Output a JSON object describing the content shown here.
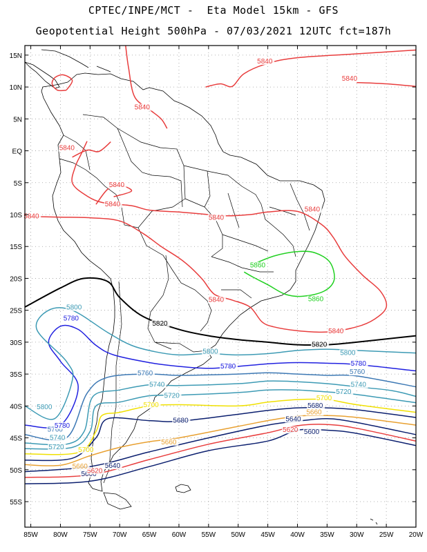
{
  "header": {
    "line1": "CPTEC/INPE/MCT -  Eta Model 15km - GFS",
    "line2": "Geopotential Height 500hPa - 07/03/2021 12UTC fct=187h"
  },
  "axes": {
    "lat_labels": [
      "15N",
      "10N",
      "5N",
      "EQ",
      "5S",
      "10S",
      "15S",
      "20S",
      "25S",
      "30S",
      "35S",
      "40S",
      "45S",
      "50S",
      "55S"
    ],
    "lat_values": [
      15,
      10,
      5,
      0,
      -5,
      -10,
      -15,
      -20,
      -25,
      -30,
      -35,
      -40,
      -45,
      -50,
      -55
    ],
    "lon_labels": [
      "85W",
      "80W",
      "75W",
      "70W",
      "65W",
      "60W",
      "55W",
      "50W",
      "45W",
      "40W",
      "35W",
      "30W",
      "25W",
      "20W"
    ],
    "lon_values": [
      -85,
      -80,
      -75,
      -70,
      -65,
      -60,
      -55,
      -50,
      -45,
      -40,
      -35,
      -30,
      -25,
      -20
    ],
    "lon_range": [
      -86,
      -20
    ],
    "lat_range": [
      -59,
      16.5
    ],
    "grid": "dotted"
  },
  "contours": [
    {
      "level": "5600",
      "color": "#0a1e6e",
      "points": [
        [
          -86,
          -52.2
        ],
        [
          -75,
          -51.8
        ],
        [
          -65,
          -49.5
        ],
        [
          -55,
          -47
        ],
        [
          -45,
          -45.5
        ],
        [
          -40,
          -43.8
        ],
        [
          -35,
          -43.8
        ],
        [
          -30,
          -44.3
        ],
        [
          -20,
          -46.2
        ]
      ],
      "labels": [
        [
          -38.9,
          -44.4
        ],
        [
          -76.5,
          -51
        ]
      ]
    },
    {
      "level": "5620",
      "color": "#e83c3c",
      "points": [
        [
          -86,
          -51.2
        ],
        [
          -75,
          -50.8
        ],
        [
          -65,
          -48.4
        ],
        [
          -55,
          -46
        ],
        [
          -45,
          -44.2
        ],
        [
          -40,
          -43.1
        ],
        [
          -35,
          -42.9
        ],
        [
          -30,
          -43.5
        ],
        [
          -20,
          -45.5
        ]
      ],
      "labels": [
        [
          -42.5,
          -44.1
        ],
        [
          -75.5,
          -50.5
        ]
      ]
    },
    {
      "level": "5640",
      "color": "#0a1e6e",
      "points": [
        [
          -86,
          -50.3
        ],
        [
          -75,
          -49.5
        ],
        [
          -65,
          -47.2
        ],
        [
          -55,
          -45
        ],
        [
          -45,
          -43
        ],
        [
          -40,
          -42.4
        ],
        [
          -35,
          -42
        ],
        [
          -30,
          -42.6
        ],
        [
          -20,
          -44.5
        ]
      ],
      "labels": [
        [
          -42,
          -42.4
        ],
        [
          -72.5,
          -49.7
        ]
      ]
    },
    {
      "level": "5660",
      "color": "#e8a030",
      "points": [
        [
          -86,
          -49.2
        ],
        [
          -80,
          -49.3
        ],
        [
          -75,
          -47.8
        ],
        [
          -70,
          -46.5
        ],
        [
          -65,
          -45.6
        ],
        [
          -60,
          -45
        ],
        [
          -50,
          -43.2
        ],
        [
          -45,
          -42.3
        ],
        [
          -40,
          -41.6
        ],
        [
          -35,
          -41.5
        ],
        [
          -30,
          -41.8
        ],
        [
          -20,
          -43
        ]
      ],
      "labels": [
        [
          -63,
          -46
        ],
        [
          -78,
          -49.8
        ],
        [
          -38.5,
          -41.3
        ]
      ]
    },
    {
      "level": "5680",
      "color": "#0a1e6e",
      "points": [
        [
          -86,
          -48.5
        ],
        [
          -78,
          -48.2
        ],
        [
          -74,
          -45
        ],
        [
          -72,
          -42
        ],
        [
          -65,
          -42.3
        ],
        [
          -60,
          -42.4
        ],
        [
          -50,
          -41.3
        ],
        [
          -45,
          -40.7
        ],
        [
          -40,
          -40.3
        ],
        [
          -35,
          -40.3
        ],
        [
          -30,
          -40.6
        ],
        [
          -20,
          -41.8
        ]
      ],
      "labels": [
        [
          -61,
          -42.6
        ],
        [
          -38.3,
          -40.3
        ]
      ]
    },
    {
      "level": "5700",
      "color": "#f0e000",
      "points": [
        [
          -86,
          -47.5
        ],
        [
          -77,
          -47.3
        ],
        [
          -74,
          -44
        ],
        [
          -73,
          -41.5
        ],
        [
          -70,
          -41
        ],
        [
          -65,
          -40
        ],
        [
          -60,
          -39.8
        ],
        [
          -50,
          -40
        ],
        [
          -45,
          -39.4
        ],
        [
          -40,
          -39
        ],
        [
          -35,
          -39
        ],
        [
          -30,
          -39.8
        ],
        [
          -20,
          -41
        ]
      ],
      "labels": [
        [
          -66,
          -40.2
        ],
        [
          -77,
          -47.2
        ],
        [
          -36.8,
          -39.1
        ]
      ]
    },
    {
      "level": "5720",
      "color": "#3c9ab4",
      "points": [
        [
          -86,
          -46.7
        ],
        [
          -78,
          -46.5
        ],
        [
          -75,
          -44
        ],
        [
          -74,
          -40
        ],
        [
          -70,
          -39.4
        ],
        [
          -65,
          -38.4
        ],
        [
          -60,
          -38.3
        ],
        [
          -50,
          -37.9
        ],
        [
          -45,
          -37.5
        ],
        [
          -40,
          -37.5
        ],
        [
          -35,
          -37.8
        ],
        [
          -30,
          -38.2
        ],
        [
          -20,
          -39.5
        ]
      ],
      "labels": [
        [
          -62.5,
          -38.7
        ],
        [
          -82,
          -46.8
        ],
        [
          -33.5,
          -38.1
        ]
      ]
    },
    {
      "level": "5740",
      "color": "#3c9ab4",
      "points": [
        [
          -86,
          -45.8
        ],
        [
          -79,
          -46
        ],
        [
          -76,
          -44
        ],
        [
          -74.5,
          -38.5
        ],
        [
          -70,
          -37.5
        ],
        [
          -65,
          -36.7
        ],
        [
          -60,
          -36.8
        ],
        [
          -50,
          -36.5
        ],
        [
          -45,
          -36.1
        ],
        [
          -40,
          -36.2
        ],
        [
          -35,
          -36.5
        ],
        [
          -30,
          -37
        ],
        [
          -24,
          -37.6
        ],
        [
          -20,
          -38.5
        ]
      ],
      "labels": [
        [
          -65,
          -37
        ],
        [
          -81.8,
          -45.3
        ],
        [
          -31,
          -37
        ]
      ]
    },
    {
      "level": "5760",
      "color": "#3c78b4",
      "points": [
        [
          -86,
          -44.5
        ],
        [
          -79,
          -45
        ],
        [
          -75.5,
          -38
        ],
        [
          -72,
          -35.5
        ],
        [
          -65,
          -35
        ],
        [
          -60,
          -35.2
        ],
        [
          -50,
          -35
        ],
        [
          -45,
          -34.8
        ],
        [
          -40,
          -35
        ],
        [
          -35,
          -35.2
        ],
        [
          -30,
          -35.3
        ],
        [
          -20,
          -37
        ]
      ],
      "labels": [
        [
          -67,
          -35.2
        ],
        [
          -82.2,
          -44
        ],
        [
          -31.2,
          -35
        ]
      ]
    },
    {
      "level": "5780",
      "color": "#2020e0",
      "points": [
        [
          -86,
          -43
        ],
        [
          -80,
          -43
        ],
        [
          -77,
          -37
        ],
        [
          -80,
          -33
        ],
        [
          -82,
          -30
        ],
        [
          -80,
          -27.5
        ],
        [
          -77,
          -28
        ],
        [
          -74,
          -30.5
        ],
        [
          -71,
          -32
        ],
        [
          -65,
          -33.2
        ],
        [
          -60,
          -33.8
        ],
        [
          -55,
          -34.1
        ],
        [
          -50,
          -33.8
        ],
        [
          -45,
          -33.4
        ],
        [
          -40,
          -33.2
        ],
        [
          -35,
          -33.3
        ],
        [
          -30,
          -33.5
        ],
        [
          -20,
          -34.5
        ]
      ],
      "labels": [
        [
          -81,
          -43.4
        ],
        [
          -79.5,
          -26.6
        ],
        [
          -53,
          -34.1
        ],
        [
          -31,
          -33.7
        ]
      ]
    },
    {
      "level": "5800",
      "color": "#3c9ab4",
      "points": [
        [
          -86,
          -40
        ],
        [
          -81,
          -42
        ],
        [
          -78,
          -36
        ],
        [
          -79,
          -33
        ],
        [
          -84,
          -28
        ],
        [
          -82,
          -25
        ],
        [
          -78,
          -25
        ],
        [
          -72,
          -28.5
        ],
        [
          -68,
          -30.5
        ],
        [
          -64,
          -31.5
        ],
        [
          -60,
          -32
        ],
        [
          -55,
          -31.8
        ],
        [
          -50,
          -32
        ],
        [
          -45,
          -31.8
        ],
        [
          -40,
          -31.3
        ],
        [
          -35,
          -31.1
        ],
        [
          -30,
          -31.3
        ],
        [
          -20,
          -31.7
        ]
      ],
      "labels": [
        [
          -84,
          -40.5
        ],
        [
          -79,
          -24.9
        ],
        [
          -56,
          -31.8
        ],
        [
          -32.8,
          -32
        ]
      ]
    },
    {
      "level": "5820",
      "color": "#000000",
      "points": [
        [
          -86,
          -24.5
        ],
        [
          -80,
          -21.5
        ],
        [
          -76,
          -20
        ],
        [
          -72,
          -20.5
        ],
        [
          -70,
          -23
        ],
        [
          -66,
          -26
        ],
        [
          -60,
          -28
        ],
        [
          -55,
          -29
        ],
        [
          -50,
          -29.6
        ],
        [
          -45,
          -30
        ],
        [
          -40,
          -30.4
        ],
        [
          -35,
          -30.4
        ],
        [
          -30,
          -30
        ],
        [
          -25,
          -29.5
        ],
        [
          -20,
          -29
        ]
      ],
      "labels": [
        [
          -64.5,
          -27.4
        ],
        [
          -37.6,
          -30.7
        ]
      ]
    },
    {
      "level": "5840",
      "color": "#e83c3c",
      "points": [
        [
          -86,
          -10.3
        ],
        [
          -80,
          -10.4
        ],
        [
          -75,
          -10.5
        ],
        [
          -70,
          -11
        ],
        [
          -66,
          -13
        ],
        [
          -63,
          -15
        ],
        [
          -60,
          -16.8
        ],
        [
          -58,
          -18.3
        ],
        [
          -56,
          -20.2
        ],
        [
          -54,
          -22.5
        ],
        [
          -51,
          -23.4
        ],
        [
          -48,
          -24.5
        ],
        [
          -46,
          -26.8
        ],
        [
          -44,
          -27.6
        ],
        [
          -40,
          -28.2
        ],
        [
          -35,
          -28.4
        ],
        [
          -30,
          -27.6
        ],
        [
          -27,
          -26.4
        ],
        [
          -25,
          -24.5
        ],
        [
          -26,
          -22
        ],
        [
          -29,
          -19.5
        ],
        [
          -32,
          -16.5
        ],
        [
          -34,
          -13.5
        ],
        [
          -36,
          -11.5
        ],
        [
          -40,
          -9.5
        ],
        [
          -45,
          -9.6
        ],
        [
          -48,
          -10
        ],
        [
          -52,
          -10.2
        ],
        [
          -55,
          -10
        ],
        [
          -60,
          -9.6
        ],
        [
          -65,
          -9.3
        ],
        [
          -68,
          -8.6
        ],
        [
          -73,
          -8.1
        ],
        [
          -76,
          -6.8
        ],
        [
          -78,
          -5
        ],
        [
          -77.5,
          -2.5
        ],
        [
          -76.5,
          -0.5
        ],
        [
          -75.5,
          1.5
        ]
      ],
      "labels": [
        [
          -86.2,
          -10.6
        ],
        [
          -72.5,
          -8.7
        ],
        [
          -55,
          -10.8
        ],
        [
          -38.8,
          -9.5
        ],
        [
          -55,
          -23.7
        ],
        [
          -34.8,
          -28.6
        ]
      ]
    },
    {
      "level": "5840",
      "color": "#e83c3c",
      "points": [
        [
          -74,
          -8.4
        ],
        [
          -72,
          -6
        ],
        [
          -70,
          -5.4
        ],
        [
          -68,
          -6.3
        ],
        [
          -71,
          -7.2
        ]
      ],
      "labels": [
        [
          -71.8,
          -5.7
        ]
      ]
    },
    {
      "level": "5840",
      "color": "#e83c3c",
      "points": [
        [
          -78,
          -1
        ],
        [
          -75.5,
          0.1
        ],
        [
          -73.5,
          -0.1
        ],
        [
          -71.5,
          1.4
        ]
      ],
      "labels": [
        [
          -80.2,
          0.1
        ]
      ]
    },
    {
      "level": "5840",
      "color": "#e83c3c",
      "points": [
        [
          -69,
          16.5
        ],
        [
          -68.5,
          13
        ],
        [
          -67.5,
          8.5
        ],
        [
          -65,
          6.5
        ],
        [
          -63,
          5
        ],
        [
          -62,
          3.5
        ]
      ],
      "labels": [
        [
          -67.5,
          6.5
        ]
      ]
    },
    {
      "level": "5840",
      "color": "#e83c3c",
      "points": [
        [
          -55.5,
          10
        ],
        [
          -53,
          10.5
        ],
        [
          -51,
          10.1
        ],
        [
          -49,
          12.1
        ],
        [
          -45,
          13.7
        ],
        [
          -40,
          14.6
        ],
        [
          -30,
          15.2
        ],
        [
          -20,
          15.8
        ]
      ],
      "labels": [
        [
          -46.8,
          13.7
        ]
      ]
    },
    {
      "level": "5840",
      "color": "#e83c3c",
      "points": [
        [
          -30,
          10.7
        ],
        [
          -25,
          10.5
        ],
        [
          -20,
          10.1
        ]
      ],
      "labels": [
        [
          -32.5,
          11
        ]
      ]
    },
    {
      "level": "5840",
      "color": "#e83c3c",
      "points": [
        [
          -79,
          9.5
        ],
        [
          -78,
          11
        ],
        [
          -79.5,
          11.9
        ],
        [
          -80.9,
          11.5
        ],
        [
          -81.4,
          10.5
        ],
        [
          -80.5,
          9.5
        ],
        [
          -79,
          9.5
        ]
      ],
      "labels": []
    },
    {
      "level": "5860",
      "color": "#20d020",
      "points": [
        [
          -48,
          -18
        ],
        [
          -44,
          -16.5
        ],
        [
          -40,
          -15.8
        ],
        [
          -37,
          -16
        ],
        [
          -34.5,
          -17.5
        ],
        [
          -33.8,
          -20.2
        ],
        [
          -35.5,
          -22
        ],
        [
          -39,
          -22.8
        ],
        [
          -42,
          -22.5
        ],
        [
          -45,
          -21
        ],
        [
          -47.5,
          -19.8
        ],
        [
          -49,
          -19
        ]
      ],
      "labels": [
        [
          -48,
          -18.3
        ],
        [
          -38.2,
          -23.6
        ]
      ]
    }
  ]
}
